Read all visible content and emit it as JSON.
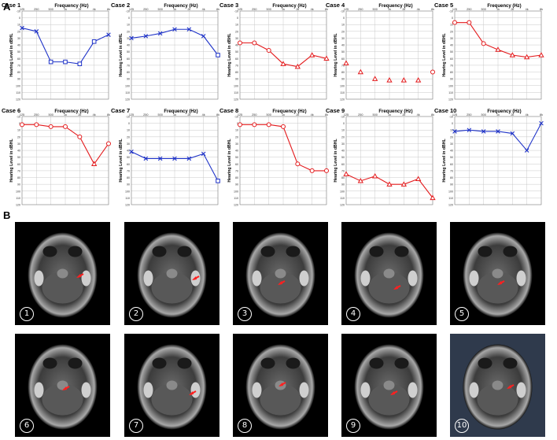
{
  "panels": {
    "a": "A",
    "b": "B"
  },
  "frequency_label": "Frequency (Hz)",
  "ylabel": "Hearing Level in dBHL",
  "freq_ticks": [
    "125",
    "250",
    "500",
    "1k",
    "2k",
    "4k",
    "8k"
  ],
  "level_ticks": [
    "-10",
    "0",
    "10",
    "20",
    "30",
    "40",
    "50",
    "60",
    "70",
    "80",
    "90",
    "100",
    "110",
    "120"
  ],
  "colors": {
    "right_ear": "#e31a1c",
    "left_ear": "#1f33c8"
  },
  "chart_data": [
    {
      "type": "line",
      "title": "Case 1",
      "color": "blue",
      "marker": "x",
      "ylim": [
        -10,
        120
      ],
      "series": [
        {
          "x": [
            "125",
            "250",
            "500",
            "1k",
            "2k",
            "4k",
            "8k"
          ],
          "values": [
            15,
            20,
            65,
            65,
            68,
            35,
            25
          ],
          "marker_override": {
            "2": "square",
            "3": "square",
            "4": "square",
            "5": "square"
          }
        }
      ]
    },
    {
      "type": "line",
      "title": "Case 2",
      "color": "blue",
      "marker": "x",
      "ylim": [
        -10,
        120
      ],
      "series": [
        {
          "x": [
            "125",
            "250",
            "500",
            "1k",
            "2k",
            "4k",
            "8k"
          ],
          "values": [
            30,
            27,
            23,
            17,
            17,
            27,
            55
          ],
          "marker_override": {
            "6": "square"
          }
        }
      ]
    },
    {
      "type": "line",
      "title": "Case 3",
      "color": "red",
      "marker": "o",
      "ylim": [
        -10,
        120
      ],
      "series": [
        {
          "x": [
            "125",
            "250",
            "500",
            "1k",
            "2k",
            "4k",
            "8k"
          ],
          "values": [
            37,
            37,
            48,
            68,
            72,
            55,
            60
          ],
          "marker_override": {
            "3": "triangle",
            "4": "triangle",
            "5": "triangle",
            "6": "triangle"
          }
        }
      ]
    },
    {
      "type": "line",
      "title": "Case 4",
      "color": "red",
      "marker": "triangle",
      "ylim": [
        -10,
        120
      ],
      "connected": false,
      "series": [
        {
          "x": [
            "125",
            "250",
            "500",
            "1k",
            "2k",
            "4k",
            "8k"
          ],
          "values": [
            67,
            80,
            90,
            92,
            92,
            92,
            80
          ],
          "marker_override": {
            "6": "circle"
          }
        }
      ]
    },
    {
      "type": "line",
      "title": "Case 5",
      "color": "red",
      "marker": "o",
      "ylim": [
        -10,
        120
      ],
      "series": [
        {
          "x": [
            "125",
            "250",
            "500",
            "1k",
            "2k",
            "4k",
            "8k"
          ],
          "values": [
            7,
            7,
            38,
            47,
            55,
            58,
            55
          ],
          "marker_override": {
            "3": "triangle",
            "4": "triangle",
            "5": "triangle",
            "6": "triangle"
          }
        }
      ]
    },
    {
      "type": "line",
      "title": "Case 6",
      "color": "red",
      "marker": "o",
      "ylim": [
        -10,
        120
      ],
      "series": [
        {
          "x": [
            "125",
            "250",
            "500",
            "1k",
            "2k",
            "4k",
            "8k"
          ],
          "values": [
            2,
            2,
            5,
            5,
            20,
            60,
            30
          ],
          "marker_override": {
            "5": "triangle"
          }
        }
      ]
    },
    {
      "type": "line",
      "title": "Case 7",
      "color": "blue",
      "marker": "x",
      "ylim": [
        -10,
        120
      ],
      "series": [
        {
          "x": [
            "125",
            "250",
            "500",
            "1k",
            "2k",
            "4k",
            "8k"
          ],
          "values": [
            42,
            52,
            52,
            52,
            52,
            45,
            85
          ],
          "marker_override": {
            "6": "square"
          }
        }
      ]
    },
    {
      "type": "line",
      "title": "Case 8",
      "color": "red",
      "marker": "o",
      "ylim": [
        -10,
        120
      ],
      "series": [
        {
          "x": [
            "125",
            "250",
            "500",
            "1k",
            "2k",
            "4k",
            "8k"
          ],
          "values": [
            2,
            2,
            2,
            5,
            60,
            70,
            70
          ]
        }
      ]
    },
    {
      "type": "line",
      "title": "Case 9",
      "color": "red",
      "marker": "triangle",
      "ylim": [
        -10,
        120
      ],
      "series": [
        {
          "x": [
            "125",
            "250",
            "500",
            "1k",
            "2k",
            "4k",
            "8k"
          ],
          "values": [
            75,
            85,
            78,
            90,
            90,
            82,
            110
          ]
        }
      ]
    },
    {
      "type": "line",
      "title": "Case 10",
      "color": "blue",
      "marker": "x",
      "ylim": [
        -10,
        120
      ],
      "series": [
        {
          "x": [
            "125",
            "250",
            "500",
            "1k",
            "2k",
            "4k",
            "8k"
          ],
          "values": [
            12,
            10,
            12,
            12,
            15,
            40,
            0
          ]
        }
      ]
    }
  ],
  "mri": {
    "numbers": [
      "①",
      "②",
      "③",
      "④",
      "⑤",
      "⑥",
      "⑦",
      "⑧",
      "⑨",
      "⑩"
    ]
  }
}
